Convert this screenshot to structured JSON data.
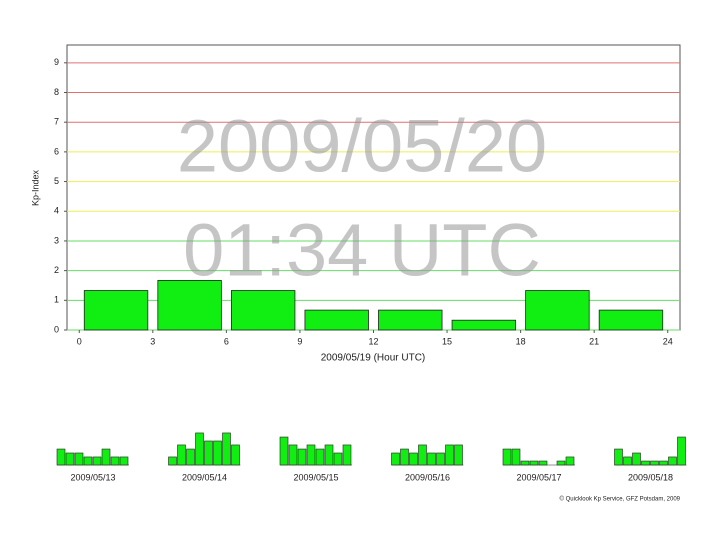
{
  "chart_data": [
    {
      "type": "bar",
      "y_label": "Kp-Index",
      "x_label": "2009/05/19 (Hour UTC)",
      "annotations": [
        "2009/05/20",
        "01:34 UTC"
      ],
      "x": [
        0,
        3,
        6,
        9,
        12,
        15,
        18,
        21
      ],
      "bar_width": 3,
      "values": [
        1.33,
        1.67,
        1.33,
        0.67,
        0.67,
        0.33,
        1.33,
        0.67
      ],
      "color": "#11ee11",
      "xlim": [
        -0.5,
        24.5
      ],
      "xticks": [
        0,
        3,
        6,
        9,
        12,
        15,
        18,
        21,
        24
      ],
      "ylim": [
        0,
        9.6
      ],
      "yticks": [
        0,
        1,
        2,
        3,
        4,
        5,
        6,
        7,
        8,
        9
      ],
      "grid": true,
      "grid_colors": [
        "#66dd66",
        "#66dd66",
        "#66dd66",
        "#66dd66",
        "#eeee55",
        "#eeee55",
        "#eeee55",
        "#e07070",
        "#e07070",
        "#e07070"
      ]
    },
    {
      "type": "mini-bar",
      "title": "2009/05/13",
      "color": "#11ee11",
      "values": [
        1.33,
        1,
        1,
        0.67,
        0.67,
        1.33,
        0.67,
        0.67
      ]
    },
    {
      "type": "mini-bar",
      "title": "2009/05/14",
      "color": "#11ee11",
      "values": [
        0.67,
        1.67,
        1.33,
        2.67,
        2,
        2,
        2.67,
        1.67
      ]
    },
    {
      "type": "mini-bar",
      "title": "2009/05/15",
      "color": "#11ee11",
      "values": [
        2.33,
        1.67,
        1.33,
        1.67,
        1.33,
        1.67,
        1,
        1.67
      ]
    },
    {
      "type": "mini-bar",
      "title": "2009/05/16",
      "color": "#11ee11",
      "values": [
        1,
        1.33,
        1,
        1.67,
        1,
        1,
        1.67,
        1.67
      ]
    },
    {
      "type": "mini-bar",
      "title": "2009/05/17",
      "color": "#11ee11",
      "values": [
        1.33,
        1.33,
        0.33,
        0.33,
        0.33,
        0,
        0.33,
        0.67
      ]
    },
    {
      "type": "mini-bar",
      "title": "2009/05/18",
      "color": "#11ee11",
      "values": [
        1.33,
        0.67,
        1,
        0.33,
        0.33,
        0.33,
        0.67,
        2.33
      ]
    }
  ],
  "credit": "© Quicklook Kp Service, GFZ Potsdam, 2009"
}
